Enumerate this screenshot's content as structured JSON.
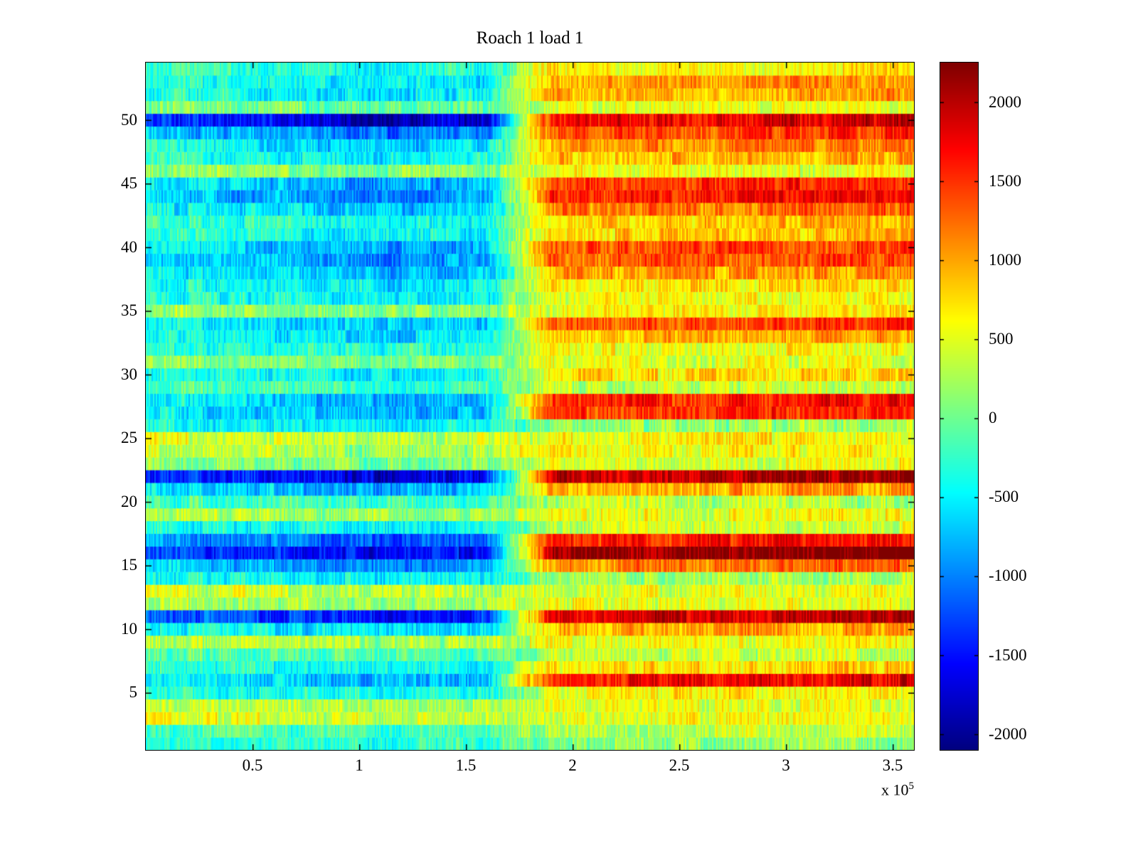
{
  "chart_data": {
    "type": "heatmap",
    "title": "Roach 1 load 1",
    "colormap": "jet",
    "seed": 1337,
    "x_axis": {
      "min": 0,
      "max": 360000,
      "tick_values": [
        50000,
        100000,
        150000,
        200000,
        250000,
        300000,
        350000
      ],
      "tick_labels": [
        "0.5",
        "1",
        "1.5",
        "2",
        "2.5",
        "3",
        "3.5"
      ],
      "multiplier": {
        "prefix": "x 10",
        "exponent": "5"
      }
    },
    "y_axis": {
      "min": 0.5,
      "max": 54.5,
      "rows": 54,
      "tick_values": [
        5,
        10,
        15,
        20,
        25,
        30,
        35,
        40,
        45,
        50
      ],
      "tick_labels": [
        "5",
        "10",
        "15",
        "20",
        "25",
        "30",
        "35",
        "40",
        "45",
        "50"
      ]
    },
    "color_axis": {
      "min": -2100,
      "max": 2250,
      "tick_values": [
        2000,
        1500,
        1000,
        500,
        0,
        -500,
        -1000,
        -1500,
        -2000
      ],
      "tick_labels": [
        "2000",
        "1500",
        "1000",
        "500",
        "0",
        "-500",
        "-1000",
        "-1500",
        "-2000"
      ]
    },
    "transition": {
      "x_start_frac": 0.44,
      "x_end_frac": 0.53
    },
    "noise": {
      "fine": 260,
      "coarse": 170
    },
    "x_profile": [
      [
        0,
        130
      ],
      [
        0.12,
        40
      ],
      [
        0.3,
        -140
      ],
      [
        0.44,
        -60
      ],
      [
        0.53,
        30
      ],
      [
        0.7,
        60
      ],
      [
        0.85,
        110
      ],
      [
        1,
        160
      ]
    ],
    "rows_note": "rows listed bottom (y=1) to top (y=54); each entry = [mean value left half, mean value right half] in colorbar units",
    "rows": [
      [
        -250,
        150
      ],
      [
        -150,
        350
      ],
      [
        450,
        500
      ],
      [
        350,
        450
      ],
      [
        -300,
        600
      ],
      [
        -600,
        1600
      ],
      [
        -350,
        700
      ],
      [
        -100,
        300
      ],
      [
        300,
        500
      ],
      [
        -500,
        900
      ],
      [
        -1300,
        1800
      ],
      [
        250,
        500
      ],
      [
        400,
        450
      ],
      [
        -400,
        200
      ],
      [
        -800,
        1100
      ],
      [
        -1400,
        2100
      ],
      [
        -1000,
        1500
      ],
      [
        -400,
        350
      ],
      [
        250,
        500
      ],
      [
        -200,
        250
      ],
      [
        -700,
        900
      ],
      [
        -1500,
        1900
      ],
      [
        100,
        450
      ],
      [
        300,
        600
      ],
      [
        400,
        550
      ],
      [
        -450,
        150
      ],
      [
        -650,
        1400
      ],
      [
        -600,
        1500
      ],
      [
        -150,
        350
      ],
      [
        -400,
        700
      ],
      [
        100,
        450
      ],
      [
        -250,
        550
      ],
      [
        -500,
        900
      ],
      [
        -600,
        1300
      ],
      [
        150,
        600
      ],
      [
        -400,
        550
      ],
      [
        -450,
        650
      ],
      [
        -650,
        950
      ],
      [
        -800,
        1250
      ],
      [
        -700,
        1300
      ],
      [
        -400,
        750
      ],
      [
        -300,
        800
      ],
      [
        -600,
        1100
      ],
      [
        -850,
        1500
      ],
      [
        -700,
        1400
      ],
      [
        150,
        500
      ],
      [
        -400,
        850
      ],
      [
        -550,
        1050
      ],
      [
        -900,
        1300
      ],
      [
        -1600,
        1700
      ],
      [
        0,
        450
      ],
      [
        -400,
        900
      ],
      [
        -450,
        950
      ],
      [
        -250,
        600
      ]
    ]
  }
}
